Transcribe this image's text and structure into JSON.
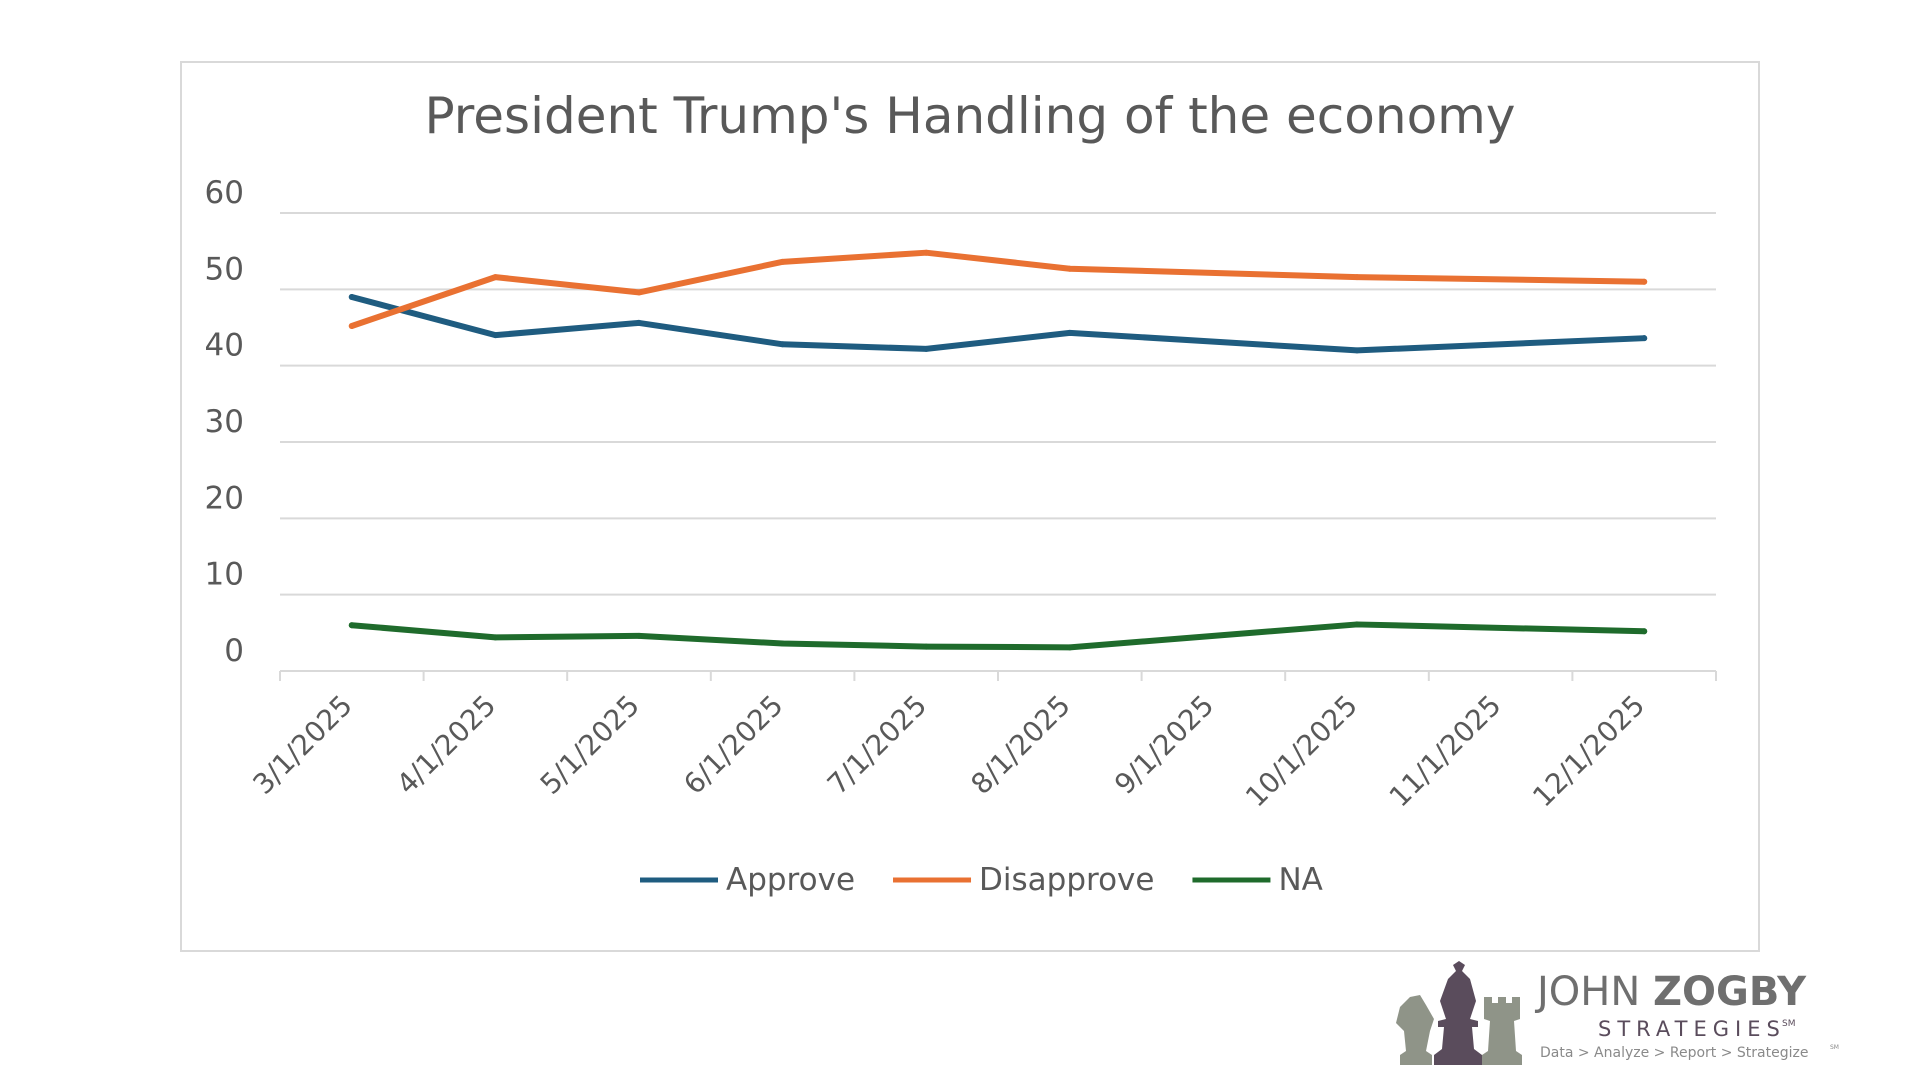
{
  "chart_data": {
    "type": "line",
    "title": "President Trump's Handling of the economy",
    "xlabel": "",
    "ylabel": "",
    "ylim": [
      0,
      60
    ],
    "yticks": [
      0,
      10,
      20,
      30,
      40,
      50,
      60
    ],
    "grid": true,
    "legend_position": "bottom",
    "categories": [
      "3/1/2025",
      "4/1/2025",
      "5/1/2025",
      "6/1/2025",
      "7/1/2025",
      "8/1/2025",
      "9/1/2025",
      "10/1/2025",
      "11/1/2025",
      "12/1/2025"
    ],
    "series": [
      {
        "name": "Approve",
        "color": "#1f5c80",
        "points": [
          [
            0,
            49
          ],
          [
            1,
            44
          ],
          [
            2,
            45.6
          ],
          [
            3,
            42.8
          ],
          [
            4,
            42.2
          ],
          [
            5,
            44.3
          ],
          [
            7,
            42
          ],
          [
            9,
            43.6
          ]
        ]
      },
      {
        "name": "Disapprove",
        "color": "#e97132",
        "points": [
          [
            0,
            45.2
          ],
          [
            1,
            51.6
          ],
          [
            2,
            49.6
          ],
          [
            3,
            53.6
          ],
          [
            4,
            54.8
          ],
          [
            5,
            52.7
          ],
          [
            7,
            51.6
          ],
          [
            9,
            51
          ]
        ]
      },
      {
        "name": "NA",
        "color": "#1f6b2c",
        "points": [
          [
            0,
            6
          ],
          [
            1,
            4.4
          ],
          [
            2,
            4.6
          ],
          [
            3,
            3.6
          ],
          [
            4,
            3.2
          ],
          [
            5,
            3.1
          ],
          [
            7,
            6.1
          ],
          [
            9,
            5.2
          ]
        ]
      }
    ]
  },
  "logo": {
    "name_first": "JOHN",
    "name_last": "ZOGBY",
    "sub": "STRATEGIES",
    "mark": "SM",
    "tagline": "Data > Analyze > Report > Strategize",
    "tag_mark": "SM",
    "colors": {
      "chess_gray": "#8f9488",
      "chess_purple": "#5a4c5c"
    }
  }
}
